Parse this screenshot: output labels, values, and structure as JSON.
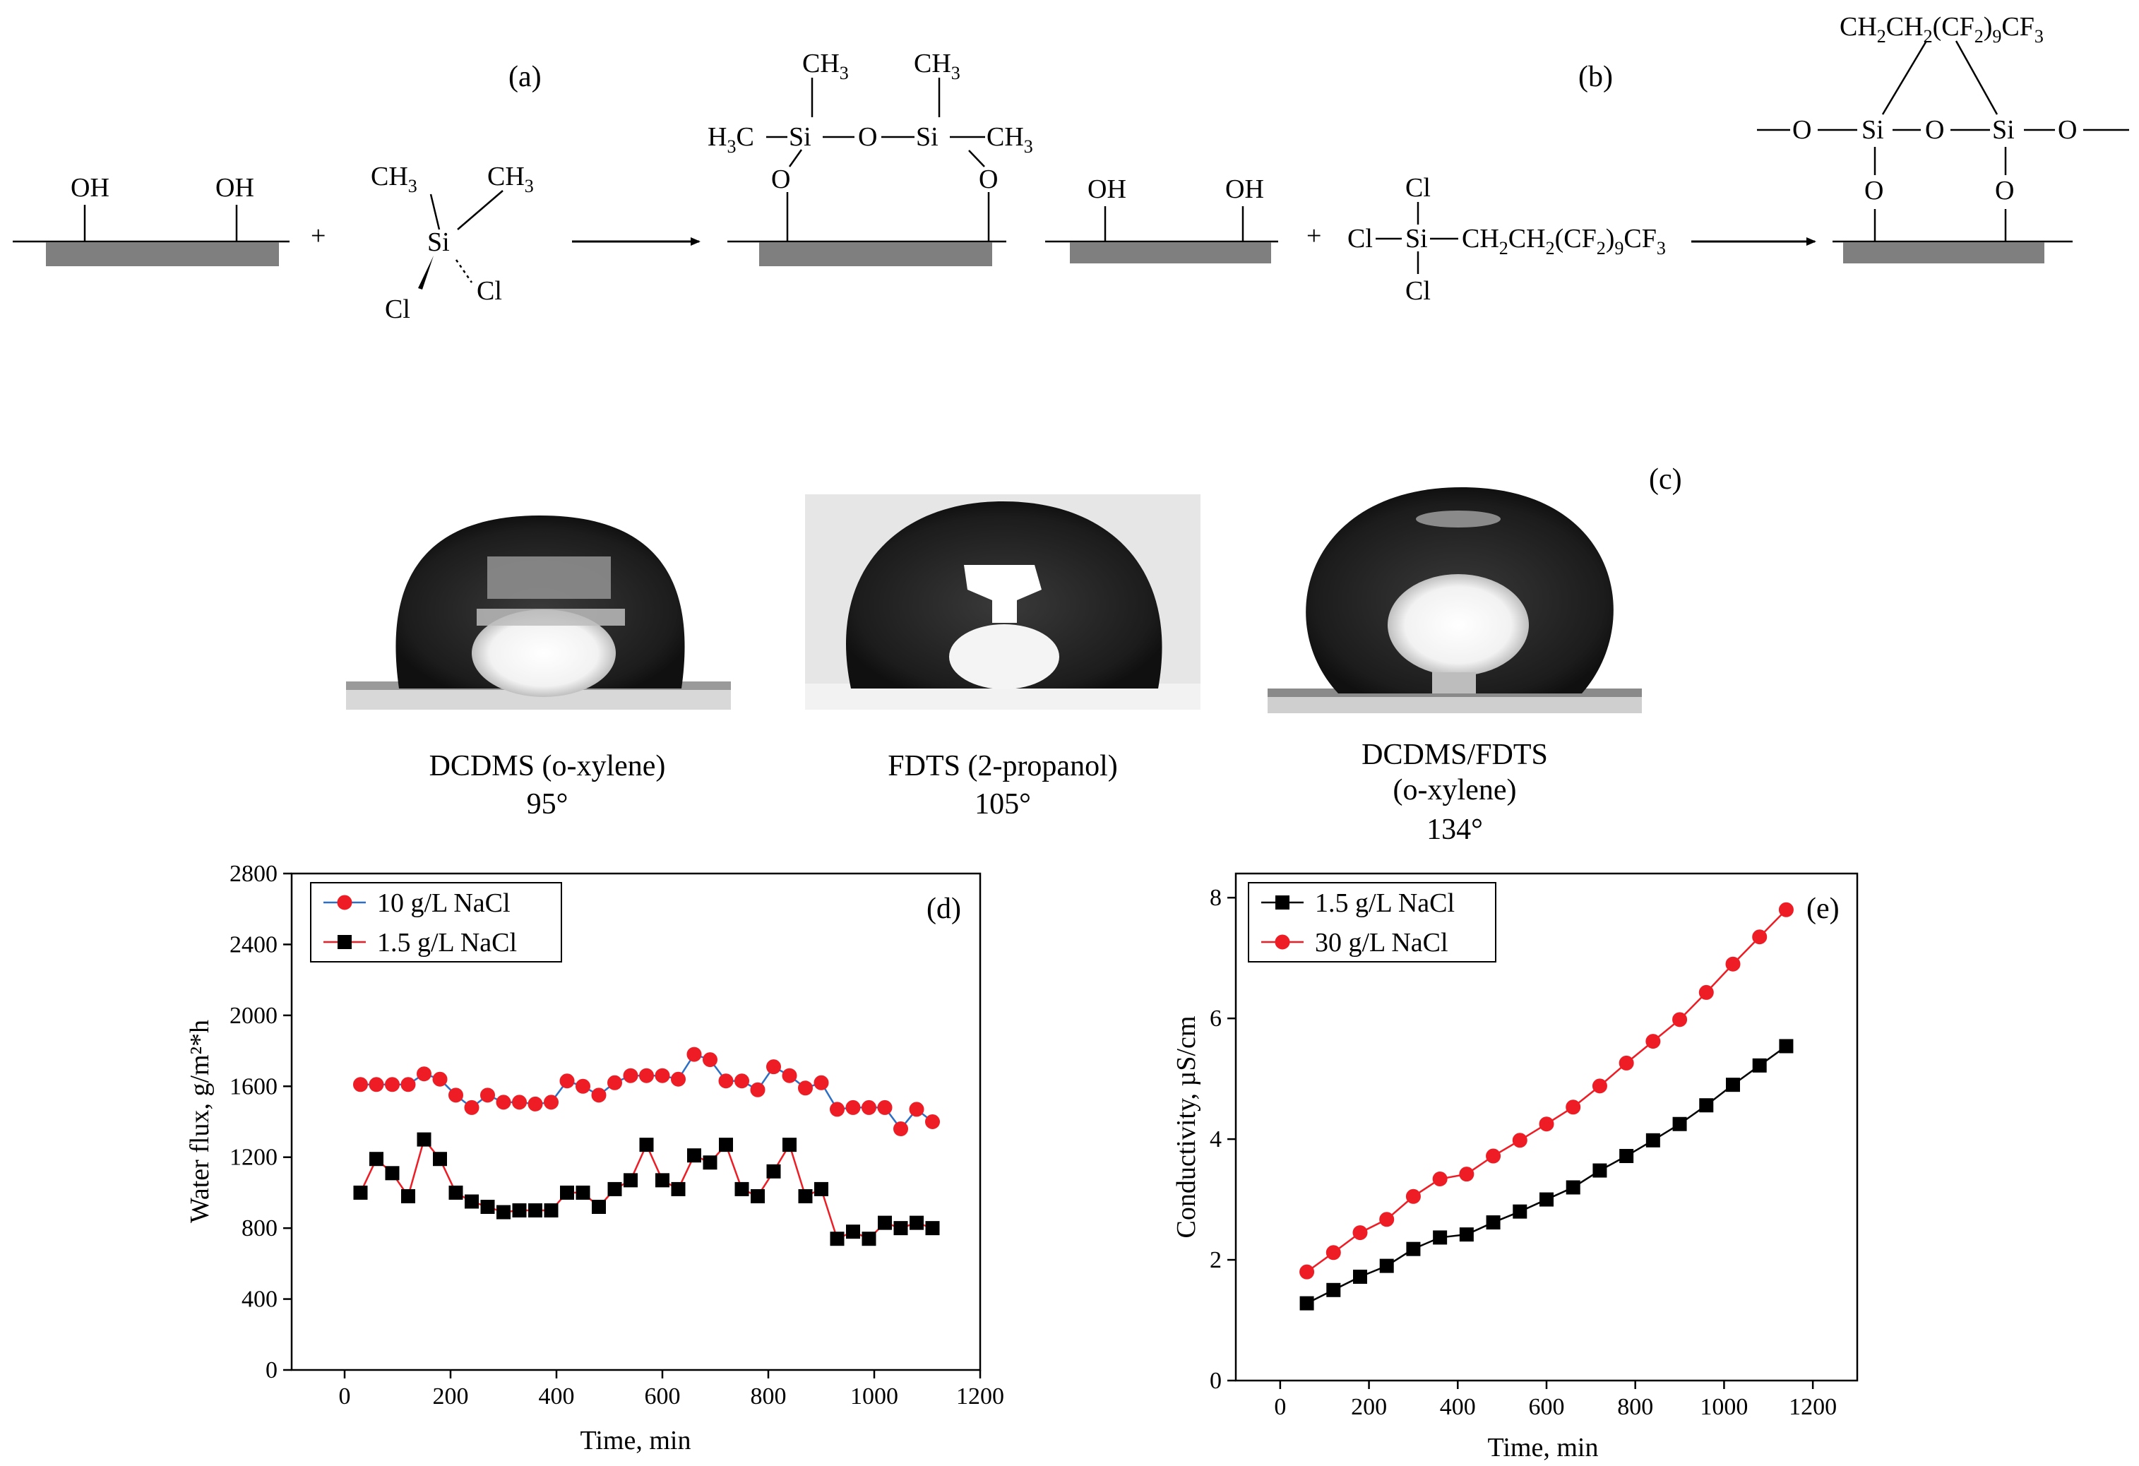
{
  "figure": {
    "panel_labels": {
      "a": "(a)",
      "b": "(b)",
      "c": "(c)",
      "d": "(d)",
      "e": "(e)"
    },
    "scheme_a": {
      "surface_groups": [
        "OH",
        "OH"
      ],
      "plus": "+",
      "reagent": {
        "methyl_1": "CH",
        "methyl_2": "CH",
        "sub_3": "3",
        "center": "Si",
        "chloro_1": "Cl",
        "chloro_2": "Cl"
      },
      "product": {
        "methyl_top_1": "CH",
        "methyl_top_2": "CH",
        "sub_3": "3",
        "left_group": "H",
        "left_sub": "3",
        "left_c": "C",
        "right_group": "CH",
        "si": "Si",
        "o": "O"
      }
    },
    "scheme_b": {
      "surface_groups": [
        "OH",
        "OH"
      ],
      "plus": "+",
      "reagent": {
        "chloro": "Cl",
        "si": "Si",
        "chain": "CH",
        "chain_sub": "2",
        "chain_mid": "CH",
        "chain_cf": "(CF",
        "chain_cf_sub": "2",
        "chain_close": ")",
        "chain_n": "9",
        "chain_end": "CF",
        "chain_end_sub": "3"
      },
      "product": {
        "bridge": "CH2CH2(CF2)9CF3",
        "si": "Si",
        "o": "O"
      }
    },
    "droplets": [
      {
        "label": "DCDMS (o-xylene)",
        "angle": "95°"
      },
      {
        "label": "FDTS (2-propanol)",
        "angle": "105°"
      },
      {
        "label_line1": "DCDMS/FDTS",
        "label_line2": "(o-xylene)",
        "angle": "134°"
      }
    ]
  },
  "chart_data": [
    {
      "type": "line",
      "panel": "(d)",
      "xlabel": "Time, min",
      "ylabel": "Water flux, g/m²*h",
      "xlim": [
        -100,
        1200
      ],
      "ylim": [
        0,
        2800
      ],
      "xticks": [
        0,
        200,
        400,
        600,
        800,
        1000,
        1200
      ],
      "yticks": [
        0,
        400,
        800,
        1200,
        1600,
        2000,
        2400,
        2800
      ],
      "x": [
        30,
        60,
        90,
        120,
        150,
        180,
        210,
        240,
        270,
        300,
        330,
        360,
        390,
        420,
        450,
        480,
        510,
        540,
        570,
        600,
        630,
        660,
        690,
        720,
        750,
        780,
        810,
        840,
        870,
        900,
        930,
        960,
        990,
        1020,
        1050,
        1080,
        1110
      ],
      "series": [
        {
          "name": "10 g/L NaCl",
          "marker": "circle",
          "marker_color": "#ee1c24",
          "line_color": "#2d6fc4",
          "values": [
            1610,
            1610,
            1610,
            1610,
            1670,
            1640,
            1550,
            1480,
            1550,
            1510,
            1510,
            1500,
            1510,
            1630,
            1600,
            1550,
            1620,
            1660,
            1660,
            1660,
            1640,
            1780,
            1750,
            1630,
            1630,
            1580,
            1710,
            1660,
            1590,
            1620,
            1470,
            1480,
            1480,
            1480,
            1360,
            1470,
            1400
          ]
        },
        {
          "name": "1.5 g/L NaCl",
          "marker": "square",
          "marker_color": "#000000",
          "line_color": "#ee1c24",
          "values": [
            1000,
            1190,
            1110,
            980,
            1300,
            1190,
            1000,
            950,
            920,
            890,
            900,
            900,
            900,
            1000,
            1000,
            920,
            1020,
            1070,
            1270,
            1070,
            1020,
            1210,
            1170,
            1270,
            1020,
            980,
            1120,
            1270,
            980,
            1020,
            740,
            780,
            740,
            830,
            800,
            830,
            800
          ]
        }
      ]
    },
    {
      "type": "line",
      "panel": "(e)",
      "xlabel": "Time, min",
      "ylabel": "Conductivity, µS/cm",
      "xlim": [
        -100,
        1300
      ],
      "ylim": [
        0,
        8.4
      ],
      "xticks": [
        0,
        200,
        400,
        600,
        800,
        1000,
        1200
      ],
      "yticks": [
        0,
        2,
        4,
        6,
        8
      ],
      "x": [
        60,
        120,
        180,
        240,
        300,
        360,
        420,
        480,
        540,
        600,
        660,
        720,
        780,
        840,
        900,
        960,
        1020,
        1080,
        1140
      ],
      "series": [
        {
          "name": "1.5 g/L NaCl",
          "marker": "square",
          "marker_color": "#000000",
          "line_color": "#000000",
          "values": [
            1.28,
            1.5,
            1.72,
            1.9,
            2.18,
            2.37,
            2.42,
            2.62,
            2.8,
            3.0,
            3.2,
            3.48,
            3.72,
            3.98,
            4.25,
            4.56,
            4.9,
            5.22,
            5.54
          ]
        },
        {
          "name": "30 g/L NaCl",
          "marker": "circle",
          "marker_color": "#ee1c24",
          "line_color": "#ee1c24",
          "values": [
            1.8,
            2.12,
            2.45,
            2.67,
            3.05,
            3.34,
            3.42,
            3.72,
            3.98,
            4.25,
            4.53,
            4.88,
            5.26,
            5.62,
            5.98,
            6.43,
            6.9,
            7.35,
            7.8
          ]
        }
      ]
    }
  ]
}
